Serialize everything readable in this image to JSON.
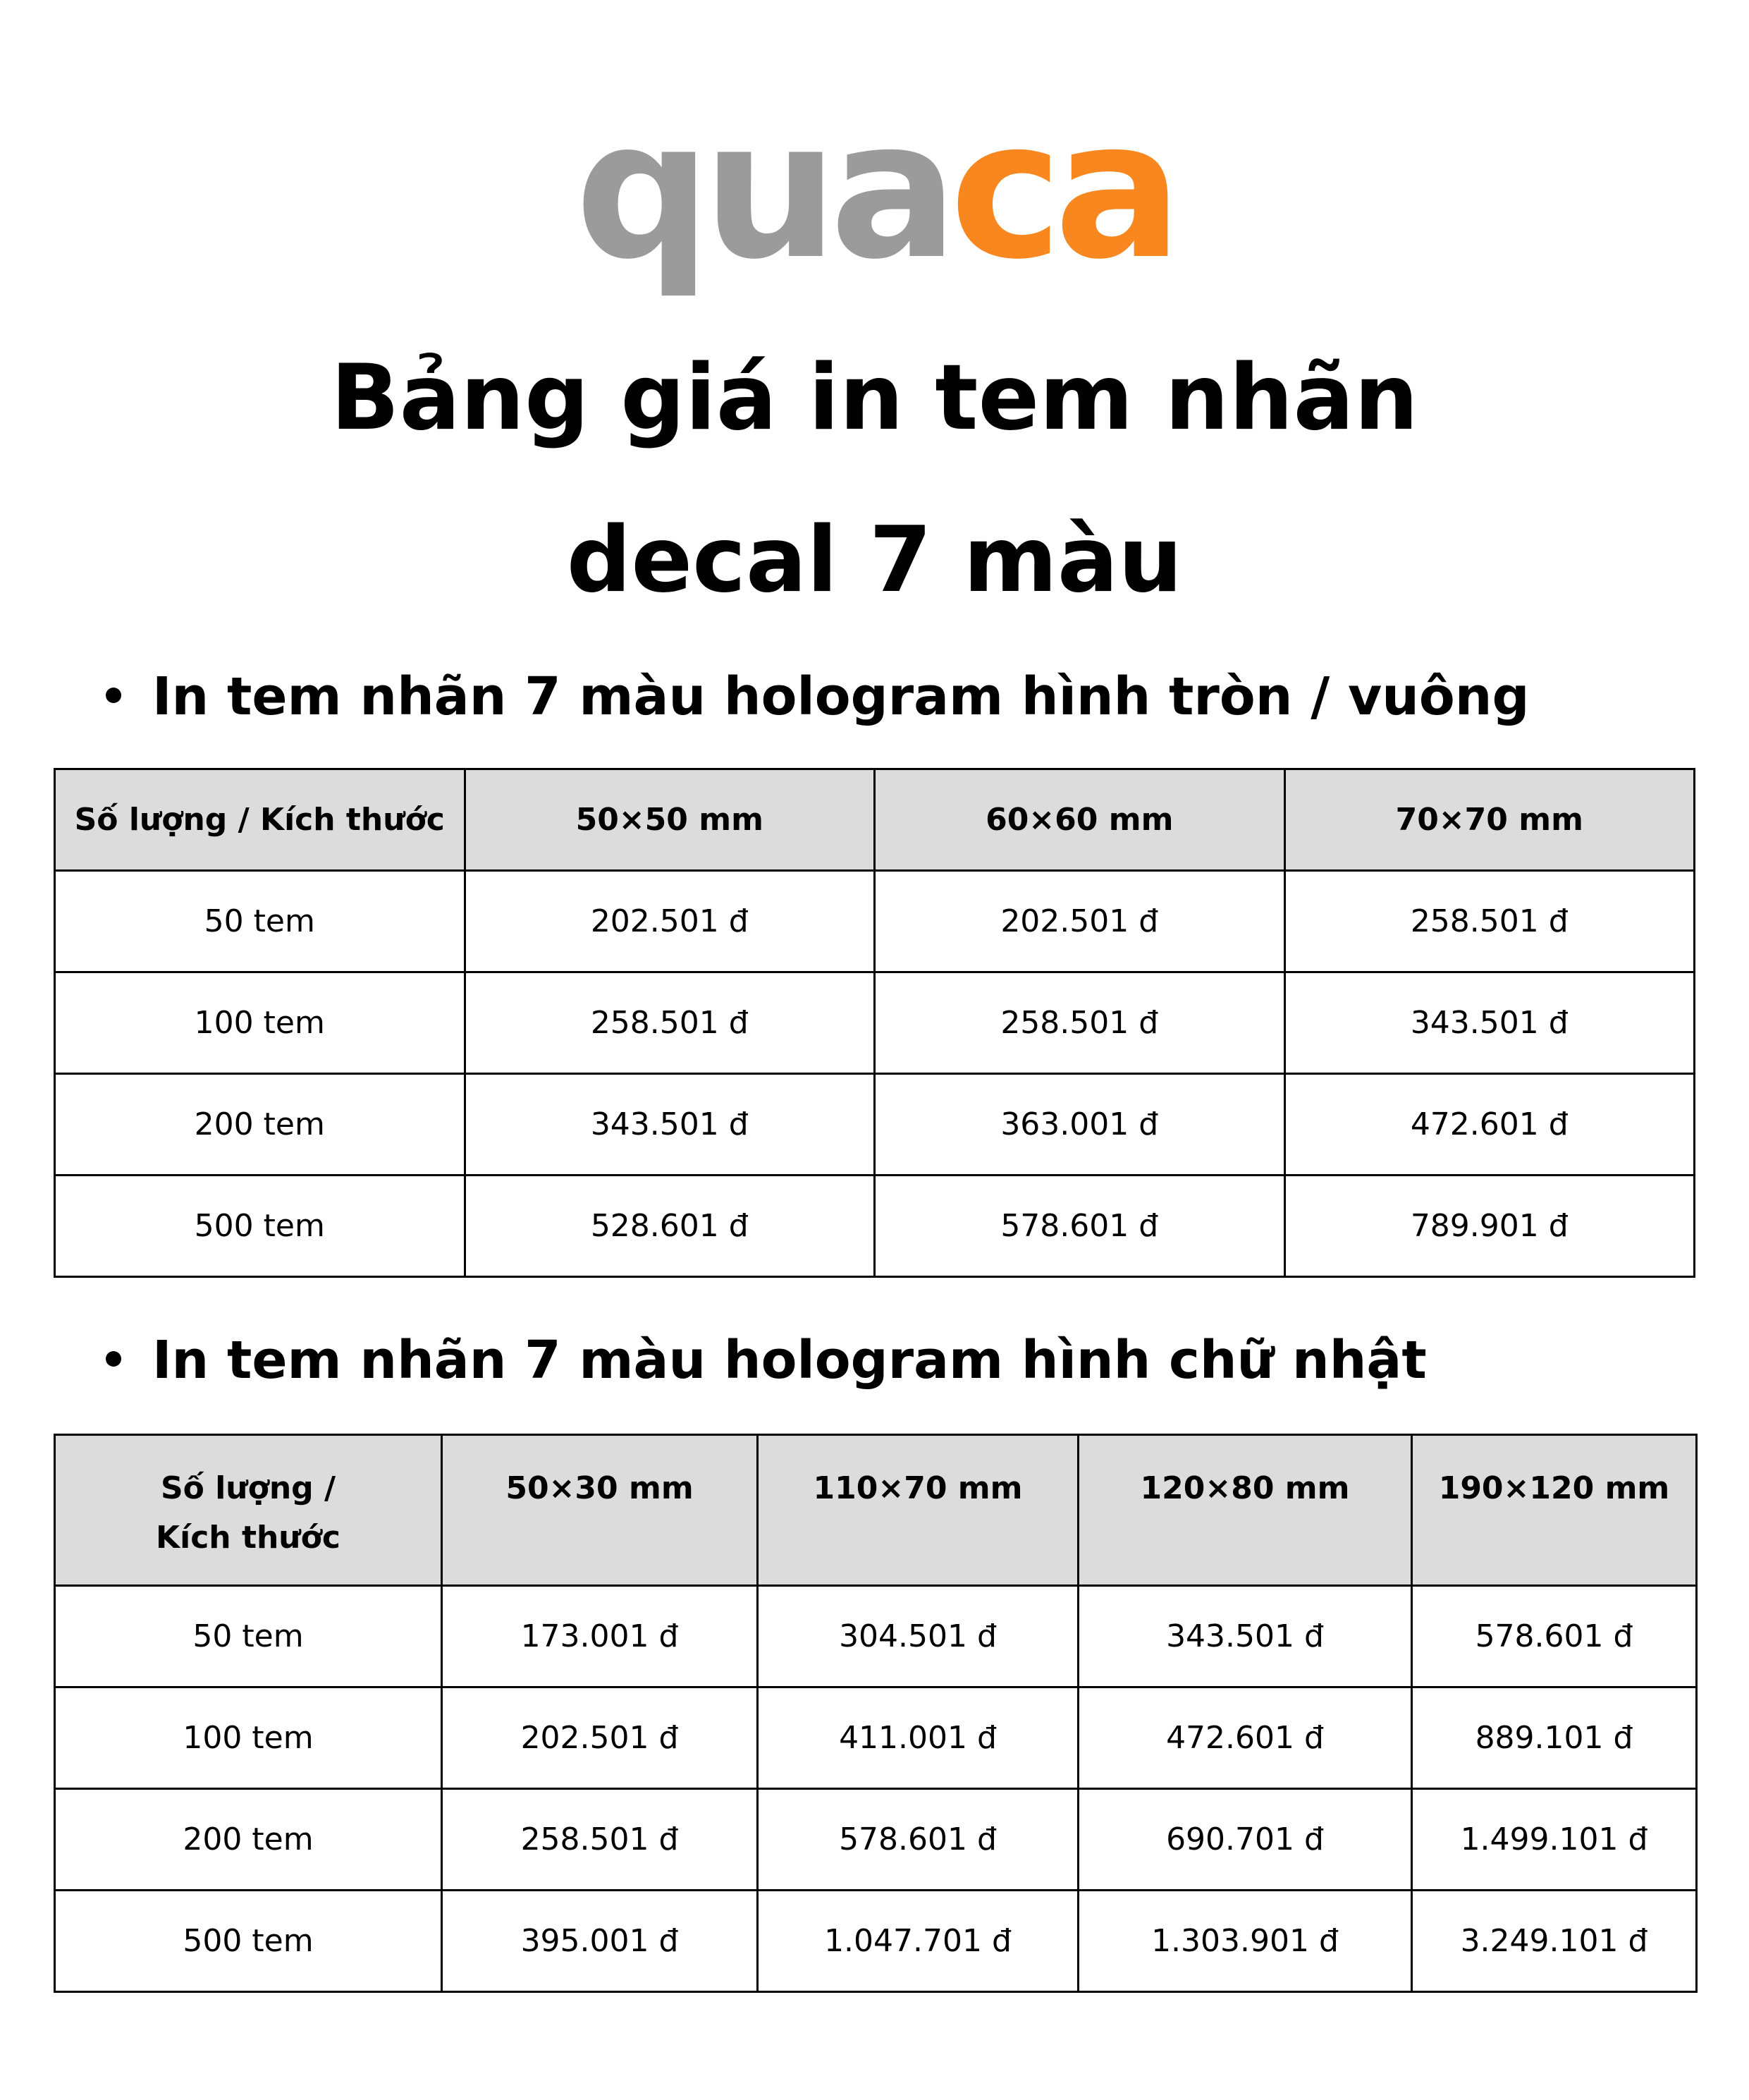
{
  "logo": {
    "text_grey": "qua",
    "text_orange": "ca",
    "colors": {
      "grey": "#9b9b9b",
      "orange": "#f7871e"
    }
  },
  "title": {
    "line1": "Bảng giá in tem nhãn",
    "line2": "decal 7 màu"
  },
  "sections": [
    {
      "heading": "In tem nhãn 7 màu hologram hình tròn / vuông",
      "headers": [
        "Số lượng / Kích thước",
        "50×50 mm",
        "60×60 mm",
        "70×70 mm"
      ],
      "rows": [
        [
          "50 tem",
          "202.501 đ",
          "202.501 đ",
          "258.501 đ"
        ],
        [
          "100 tem",
          "258.501 đ",
          "258.501 đ",
          "343.501 đ"
        ],
        [
          "200 tem",
          "343.501 đ",
          "363.001 đ",
          "472.601 đ"
        ],
        [
          "500 tem",
          "528.601 đ",
          "578.601 đ",
          "789.901 đ"
        ]
      ]
    },
    {
      "heading": "In tem nhãn 7 màu hologram hình chữ nhật",
      "headers": [
        "Số lượng / Kích thước",
        "50×30 mm",
        "110×70 mm",
        "120×80 mm",
        "190×120 mm"
      ],
      "rows": [
        [
          "50 tem",
          "173.001 đ",
          "304.501 đ",
          "343.501 đ",
          "578.601 đ"
        ],
        [
          "100 tem",
          "202.501 đ",
          "411.001 đ",
          "472.601 đ",
          "889.101 đ"
        ],
        [
          "200 tem",
          "258.501 đ",
          "578.601 đ",
          "690.701 đ",
          "1.499.101 đ"
        ],
        [
          "500 tem",
          "395.001 đ",
          "1.047.701 đ",
          "1.303.901 đ",
          "3.249.101 đ"
        ]
      ]
    }
  ]
}
